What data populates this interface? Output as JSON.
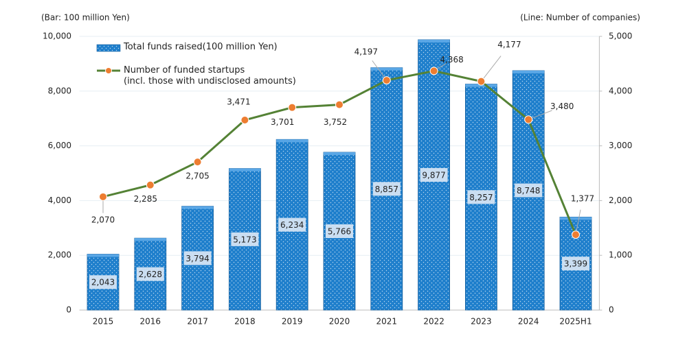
{
  "chart_data": {
    "type": "bar-line",
    "y_axis_label": "(Bar: 100 million Yen)",
    "y2_axis_label": "(Line: Number of companies)",
    "categories": [
      "2015",
      "2016",
      "2017",
      "2018",
      "2019",
      "2020",
      "2021",
      "2022",
      "2023",
      "2024",
      "2025H1"
    ],
    "series": [
      {
        "name": "Total funds raised(100 million Yen)",
        "type": "bar",
        "color": "#1f7fcc",
        "values": [
          2043,
          2628,
          3794,
          5173,
          6234,
          5766,
          8857,
          9877,
          8257,
          8748,
          3399
        ],
        "value_labels": [
          "2,043",
          "2,628",
          "3,794",
          "5,173",
          "6,234",
          "5,766",
          "8,857",
          "9,877",
          "8,257",
          "8,748",
          "3,399"
        ]
      },
      {
        "name": "Number of funded startups\n(incl. those with undisclosed amounts)",
        "type": "line",
        "axis": "y2",
        "color": "#548235",
        "marker_color": "#ed7d31",
        "values": [
          2070,
          2285,
          2705,
          3471,
          3701,
          3752,
          4197,
          4368,
          4177,
          3480,
          1377
        ],
        "value_labels": [
          "2,070",
          "2,285",
          "2,705",
          "3,471",
          "3,701",
          "3,752",
          "4,197",
          "4,368",
          "4,177",
          "3,480",
          "1,377"
        ]
      }
    ],
    "ylim": [
      0,
      10000
    ],
    "yticks": [
      0,
      {
        "value": 2000,
        "label": "2,000"
      },
      {
        "value": 4000,
        "label": "4,000"
      },
      {
        "value": 6000,
        "label": "6,000"
      },
      {
        "value": 8000,
        "label": "8,000"
      },
      {
        "value": 10000,
        "label": "10,000"
      }
    ],
    "y2lim": [
      0,
      5000
    ],
    "y2ticks": [
      0,
      {
        "value": 1000,
        "label": "1,000"
      },
      {
        "value": 2000,
        "label": "2,000"
      },
      {
        "value": 3000,
        "label": "3,000"
      },
      {
        "value": 4000,
        "label": "4,000"
      },
      {
        "value": 5000,
        "label": "5,000"
      }
    ],
    "grid": true,
    "legend": "top-left"
  }
}
